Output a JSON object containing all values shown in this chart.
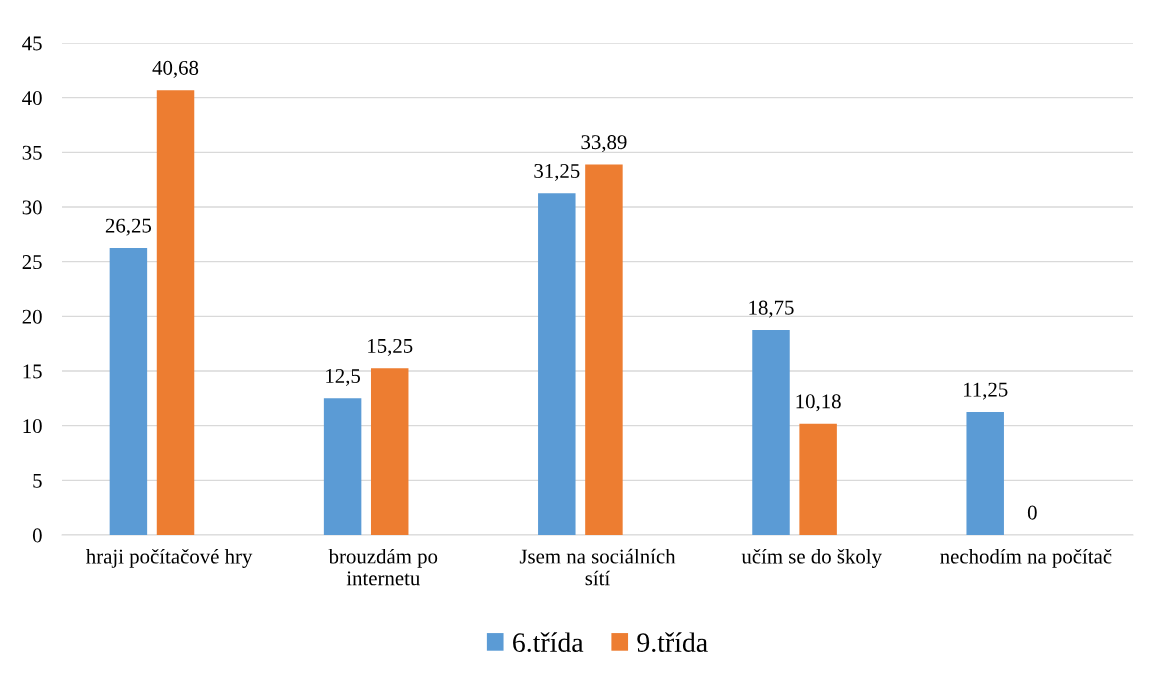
{
  "chart_data": {
    "type": "bar",
    "categories": [
      "hraji počítačové hry",
      "brouzdám po internetu",
      "Jsem na sociálních sítí",
      "učím se do školy",
      "nechodím na počítač"
    ],
    "series": [
      {
        "name": "6.třída",
        "color": "#5b9bd5",
        "values": [
          26.25,
          12.5,
          31.25,
          18.75,
          11.25
        ],
        "value_labels": [
          "26,25",
          "12,5",
          "31,25",
          "18,75",
          "11,25"
        ]
      },
      {
        "name": "9.třída",
        "color": "#ed7d31",
        "values": [
          40.68,
          15.25,
          33.89,
          10.18,
          0
        ],
        "value_labels": [
          "40,68",
          "15,25",
          "33,89",
          "10,18",
          "0"
        ]
      }
    ],
    "ylim": [
      0,
      45
    ],
    "yticks": [
      0,
      5,
      10,
      15,
      20,
      25,
      30,
      35,
      40,
      45
    ],
    "grid": "y",
    "legend": "bottom"
  }
}
